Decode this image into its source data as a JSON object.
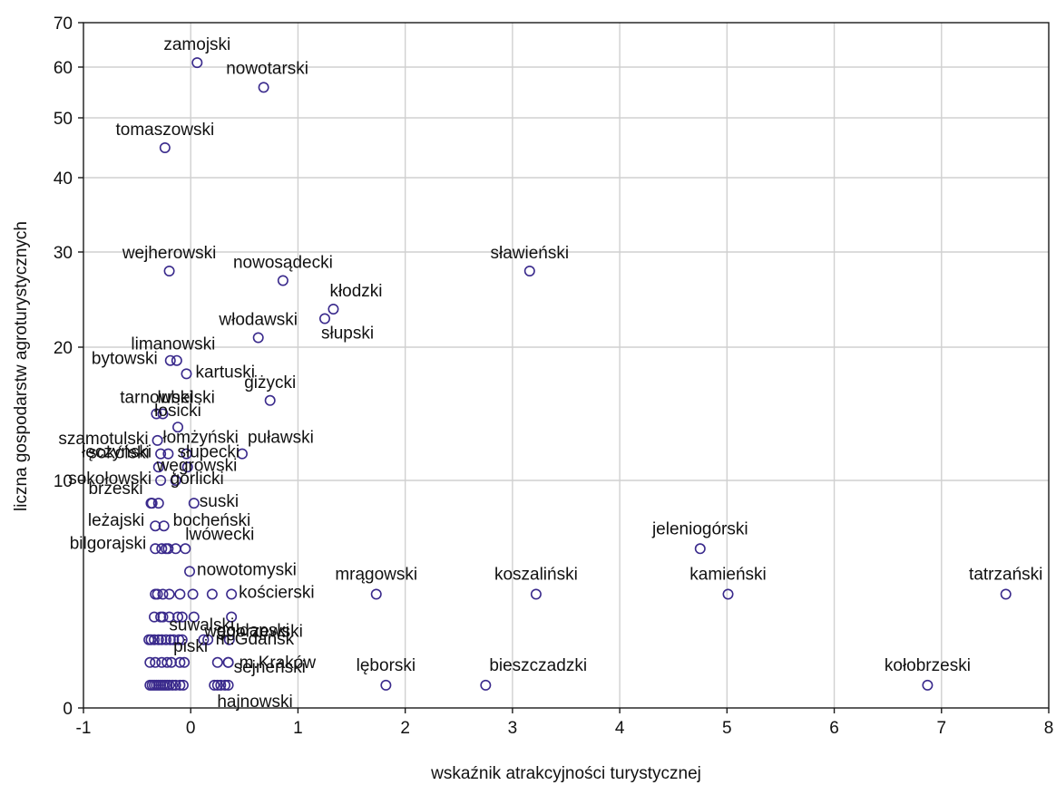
{
  "chart_data": {
    "type": "scatter",
    "title": "",
    "xlabel": "wskaźnik atrakcyjności turystycznej",
    "ylabel": "liczna gospodarstw agroturystycznych",
    "xlim": [
      -1,
      8
    ],
    "ylim": [
      0,
      70
    ],
    "x_ticks": [
      -1,
      0,
      1,
      2,
      3,
      4,
      5,
      6,
      7,
      8
    ],
    "y_ticks": [
      0,
      10,
      20,
      30,
      40,
      50,
      60,
      70
    ],
    "y_scale": "nonlinear (roughly square-root-like spacing)",
    "grid": true,
    "marker": "open circle",
    "marker_color": "#3a2a8c",
    "grid_color": "#d0d0d0",
    "labeled_points": [
      {
        "label": "zamojski",
        "x": 0.06,
        "y": 61
      },
      {
        "label": "nowotarski",
        "x": 0.68,
        "y": 56
      },
      {
        "label": "tomaszowski",
        "x": -0.24,
        "y": 45
      },
      {
        "label": "wejherowski",
        "x": -0.2,
        "y": 28
      },
      {
        "label": "nowosądecki",
        "x": 0.86,
        "y": 27
      },
      {
        "label": "sławieński",
        "x": 3.16,
        "y": 28
      },
      {
        "label": "kłodzki",
        "x": 1.33,
        "y": 24
      },
      {
        "label": "słupski",
        "x": 1.25,
        "y": 23
      },
      {
        "label": "włodawski",
        "x": 0.63,
        "y": 21
      },
      {
        "label": "limanowski",
        "x": -0.13,
        "y": 19
      },
      {
        "label": "bytowski",
        "x": -0.19,
        "y": 19
      },
      {
        "label": "kartuski",
        "x": -0.04,
        "y": 18
      },
      {
        "label": "giżycki",
        "x": 0.74,
        "y": 16
      },
      {
        "label": "tarnowski",
        "x": -0.32,
        "y": 15
      },
      {
        "label": "lubelski",
        "x": -0.26,
        "y": 15
      },
      {
        "label": "łosicki",
        "x": -0.12,
        "y": 14
      },
      {
        "label": "szamotulski",
        "x": -0.31,
        "y": 13
      },
      {
        "label": "puławski",
        "x": 0.48,
        "y": 12
      },
      {
        "label": "łęczyński",
        "x": -0.28,
        "y": 12
      },
      {
        "label": "łomżyński",
        "x": -0.21,
        "y": 12
      },
      {
        "label": "słupecki",
        "x": -0.04,
        "y": 12
      },
      {
        "label": "sokólski",
        "x": -0.3,
        "y": 11
      },
      {
        "label": "węgrowski",
        "x": -0.03,
        "y": 11
      },
      {
        "label": "sokołowski",
        "x": -0.28,
        "y": 10
      },
      {
        "label": "gorlicki",
        "x": -0.14,
        "y": 10
      },
      {
        "label": "suski",
        "x": 0.03,
        "y": 9
      },
      {
        "label": "brzeski",
        "x": -0.36,
        "y": 9
      },
      {
        "label": "bocheński",
        "x": -0.25,
        "y": 8
      },
      {
        "label": "leżajski",
        "x": -0.33,
        "y": 8
      },
      {
        "label": "lwówecki",
        "x": -0.05,
        "y": 7
      },
      {
        "label": "bilgorajski",
        "x": -0.33,
        "y": 7
      },
      {
        "label": "nowotomyski",
        "x": -0.01,
        "y": 6
      },
      {
        "label": "kościerski",
        "x": 0.38,
        "y": 5
      },
      {
        "label": "węgorzewski",
        "x": 0.38,
        "y": 4
      },
      {
        "label": "suwalski",
        "x": 0.12,
        "y": 3
      },
      {
        "label": "gołdapski",
        "x": 0.36,
        "y": 3
      },
      {
        "label": "m.Gdańsk",
        "x": 0.35,
        "y": 2
      },
      {
        "label": "piski",
        "x": -0.06,
        "y": 2
      },
      {
        "label": "m.Kraków",
        "x": 0.35,
        "y": 2
      },
      {
        "label": "sejneński",
        "x": 0.35,
        "y": 1
      },
      {
        "label": "hajnowski",
        "x": 0.28,
        "y": 1
      },
      {
        "label": "mrągowski",
        "x": 1.73,
        "y": 5
      },
      {
        "label": "koszaliński",
        "x": 3.22,
        "y": 5
      },
      {
        "label": "kamieński",
        "x": 5.01,
        "y": 5
      },
      {
        "label": "tatrzański",
        "x": 7.6,
        "y": 5
      },
      {
        "label": "jeleniogórski",
        "x": 4.75,
        "y": 7
      },
      {
        "label": "lęborski",
        "x": 1.82,
        "y": 1
      },
      {
        "label": "bieszczadzki",
        "x": 2.75,
        "y": 1
      },
      {
        "label": "kołobrzeski",
        "x": 6.87,
        "y": 1
      }
    ],
    "unlabeled_points": [
      {
        "x": -0.37,
        "y": 9
      },
      {
        "x": -0.3,
        "y": 9
      },
      {
        "x": -0.27,
        "y": 7
      },
      {
        "x": -0.23,
        "y": 7
      },
      {
        "x": -0.21,
        "y": 7
      },
      {
        "x": -0.14,
        "y": 7
      },
      {
        "x": -0.33,
        "y": 5
      },
      {
        "x": -0.31,
        "y": 5
      },
      {
        "x": -0.26,
        "y": 5
      },
      {
        "x": -0.2,
        "y": 5
      },
      {
        "x": -0.1,
        "y": 5
      },
      {
        "x": 0.02,
        "y": 5
      },
      {
        "x": 0.2,
        "y": 5
      },
      {
        "x": -0.34,
        "y": 4
      },
      {
        "x": -0.28,
        "y": 4
      },
      {
        "x": -0.26,
        "y": 4
      },
      {
        "x": -0.2,
        "y": 4
      },
      {
        "x": -0.12,
        "y": 4
      },
      {
        "x": -0.08,
        "y": 4
      },
      {
        "x": 0.03,
        "y": 4
      },
      {
        "x": -0.39,
        "y": 3
      },
      {
        "x": -0.37,
        "y": 3
      },
      {
        "x": -0.34,
        "y": 3
      },
      {
        "x": -0.3,
        "y": 3
      },
      {
        "x": -0.27,
        "y": 3
      },
      {
        "x": -0.23,
        "y": 3
      },
      {
        "x": -0.19,
        "y": 3
      },
      {
        "x": -0.16,
        "y": 3
      },
      {
        "x": -0.11,
        "y": 3
      },
      {
        "x": -0.08,
        "y": 3
      },
      {
        "x": 0.16,
        "y": 3
      },
      {
        "x": -0.38,
        "y": 2
      },
      {
        "x": -0.33,
        "y": 2
      },
      {
        "x": -0.27,
        "y": 2
      },
      {
        "x": -0.22,
        "y": 2
      },
      {
        "x": -0.18,
        "y": 2
      },
      {
        "x": -0.1,
        "y": 2
      },
      {
        "x": 0.25,
        "y": 2
      },
      {
        "x": -0.38,
        "y": 1
      },
      {
        "x": -0.36,
        "y": 1
      },
      {
        "x": -0.34,
        "y": 1
      },
      {
        "x": -0.32,
        "y": 1
      },
      {
        "x": -0.3,
        "y": 1
      },
      {
        "x": -0.28,
        "y": 1
      },
      {
        "x": -0.26,
        "y": 1
      },
      {
        "x": -0.24,
        "y": 1
      },
      {
        "x": -0.22,
        "y": 1
      },
      {
        "x": -0.2,
        "y": 1
      },
      {
        "x": -0.17,
        "y": 1
      },
      {
        "x": -0.14,
        "y": 1
      },
      {
        "x": -0.1,
        "y": 1
      },
      {
        "x": -0.07,
        "y": 1
      },
      {
        "x": 0.22,
        "y": 1
      },
      {
        "x": 0.25,
        "y": 1
      },
      {
        "x": 0.32,
        "y": 1
      }
    ]
  }
}
